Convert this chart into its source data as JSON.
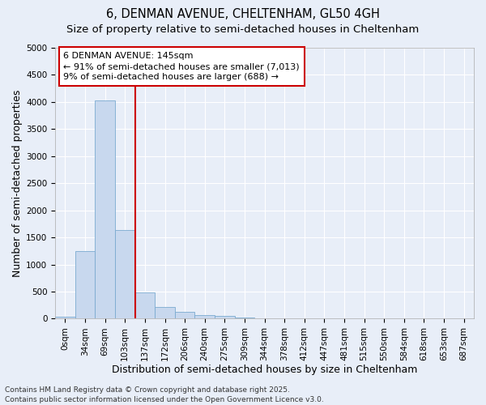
{
  "title_line1": "6, DENMAN AVENUE, CHELTENHAM, GL50 4GH",
  "title_line2": "Size of property relative to semi-detached houses in Cheltenham",
  "xlabel": "Distribution of semi-detached houses by size in Cheltenham",
  "ylabel": "Number of semi-detached properties",
  "bar_labels": [
    "0sqm",
    "34sqm",
    "69sqm",
    "103sqm",
    "137sqm",
    "172sqm",
    "206sqm",
    "240sqm",
    "275sqm",
    "309sqm",
    "344sqm",
    "378sqm",
    "412sqm",
    "447sqm",
    "481sqm",
    "515sqm",
    "550sqm",
    "584sqm",
    "618sqm",
    "653sqm",
    "687sqm"
  ],
  "bar_values": [
    30,
    1250,
    4030,
    1640,
    490,
    220,
    130,
    65,
    45,
    22,
    8,
    5,
    2,
    1,
    1,
    0,
    0,
    0,
    0,
    0,
    0
  ],
  "bar_color": "#c8d8ee",
  "bar_edge_color": "#7aaad0",
  "ylim": [
    0,
    5000
  ],
  "yticks": [
    0,
    500,
    1000,
    1500,
    2000,
    2500,
    3000,
    3500,
    4000,
    4500,
    5000
  ],
  "vline_color": "#cc0000",
  "vline_x": 4.0,
  "annotation_title": "6 DENMAN AVENUE: 145sqm",
  "annotation_line1": "← 91% of semi-detached houses are smaller (7,013)",
  "annotation_line2": "9% of semi-detached houses are larger (688) →",
  "annotation_box_color": "#cc0000",
  "footer_line1": "Contains HM Land Registry data © Crown copyright and database right 2025.",
  "footer_line2": "Contains public sector information licensed under the Open Government Licence v3.0.",
  "bg_color": "#e8eef8",
  "plot_bg_color": "#e8eef8",
  "grid_color": "#ffffff",
  "title_fontsize": 10.5,
  "subtitle_fontsize": 9.5,
  "axis_label_fontsize": 9,
  "tick_fontsize": 7.5,
  "annotation_fontsize": 8,
  "footer_fontsize": 6.5
}
